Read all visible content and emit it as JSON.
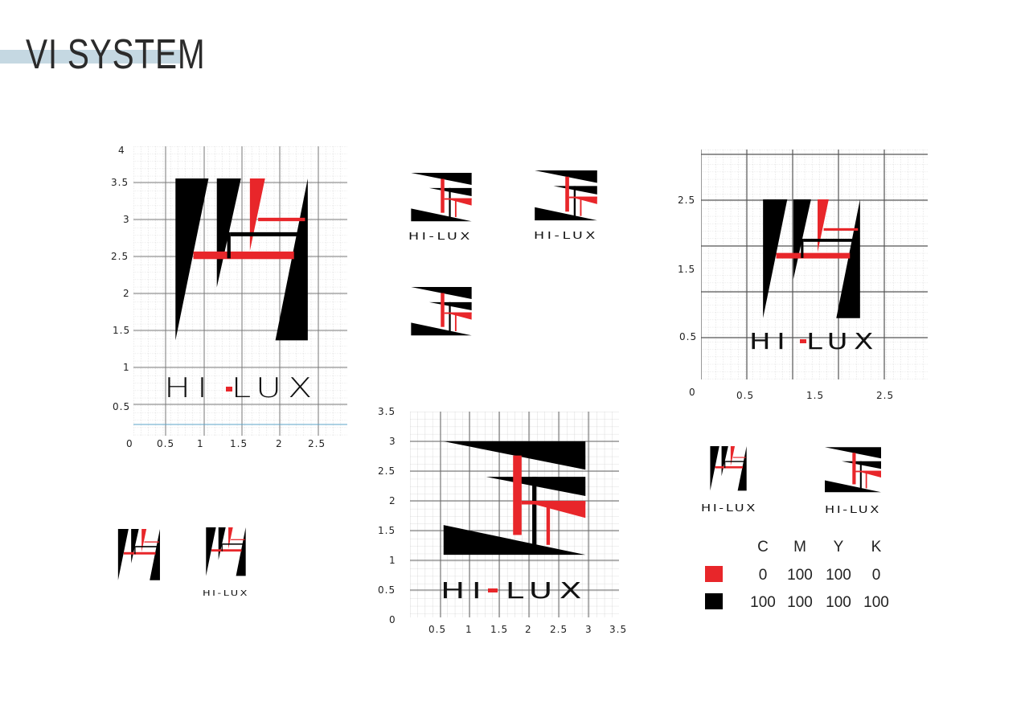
{
  "page": {
    "title": "VI SYSTEM"
  },
  "grid_a": {
    "y_ticks": [
      "4",
      "3.5",
      "3",
      "2.5",
      "2",
      "1.5",
      "1",
      "0.5"
    ],
    "x_ticks": [
      "0",
      "0.5",
      "1",
      "1.5",
      "2",
      "2.5"
    ]
  },
  "grid_b": {
    "y_ticks": [
      "3.5",
      "3",
      "2.5",
      "2",
      "1.5",
      "1",
      "0.5",
      "0"
    ],
    "x_ticks": [
      "0.5",
      "1",
      "1.5",
      "2",
      "2.5",
      "3",
      "3.5"
    ]
  },
  "grid_c": {
    "y_ticks": [
      "2.5",
      "1.5",
      "0.5"
    ],
    "x_ticks": [
      "0",
      "0.5",
      "1.5",
      "2.5"
    ]
  },
  "logo": {
    "left": "HI",
    "dash": "-",
    "right": "LUX",
    "wordmark": "HI-LUX"
  },
  "cmyk": {
    "headers": [
      "C",
      "M",
      "Y",
      "K"
    ],
    "rows": [
      {
        "swatch": "#e8262a",
        "values": [
          "0",
          "100",
          "100",
          "0"
        ]
      },
      {
        "swatch": "#000000",
        "values": [
          "100",
          "100",
          "100",
          "100"
        ]
      }
    ]
  },
  "colors": {
    "red": "#e8262a",
    "black": "#000000",
    "band": "#c5d8e2"
  }
}
